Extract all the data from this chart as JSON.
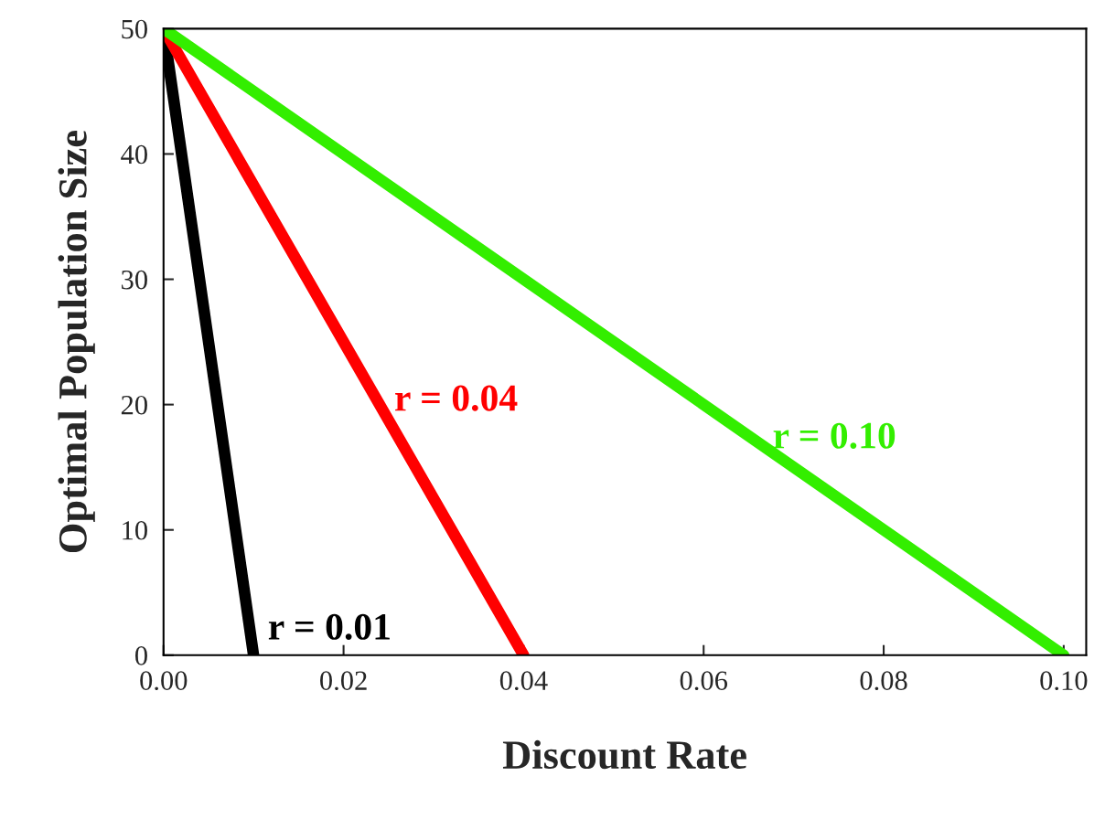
{
  "chart_data": {
    "type": "line",
    "xlabel": "Discount Rate",
    "ylabel": "Optimal Population Size",
    "series": [
      {
        "name": "r = 0.01",
        "color": "#000000",
        "x": [
          0,
          0.01
        ],
        "values": [
          50,
          0
        ]
      },
      {
        "name": "r = 0.04",
        "color": "#ff0000",
        "x": [
          0,
          0.04
        ],
        "values": [
          50,
          0
        ]
      },
      {
        "name": "r = 0.10",
        "color": "#33ee00",
        "x": [
          0,
          0.1
        ],
        "values": [
          50,
          0
        ]
      }
    ],
    "xlim": [
      0,
      0.1025
    ],
    "xticks": [
      {
        "value": 0,
        "label": "0.00"
      },
      {
        "value": 0.02,
        "label": "0.02"
      },
      {
        "value": 0.04,
        "label": "0.04"
      },
      {
        "value": 0.06,
        "label": "0.06"
      },
      {
        "value": 0.08,
        "label": "0.08"
      },
      {
        "value": 0.1,
        "label": "0.10"
      }
    ],
    "ylim": [
      0,
      50
    ],
    "yticks": [
      0,
      10,
      20,
      30,
      40,
      50
    ],
    "grid": false,
    "legend": false,
    "marker": "none",
    "line_style": "solid"
  }
}
